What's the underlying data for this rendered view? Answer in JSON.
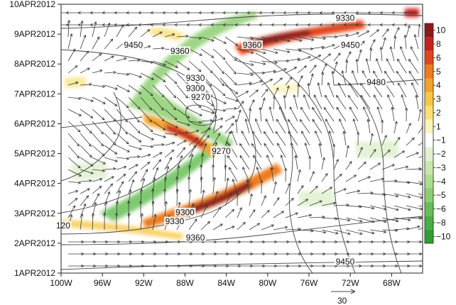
{
  "chart_data": {
    "type": "heatmap",
    "title": "",
    "xlabel": "",
    "ylabel": "",
    "x_ticks": [
      "100W",
      "96W",
      "92W",
      "88W",
      "84W",
      "80W",
      "76W",
      "72W",
      "68W"
    ],
    "x_tick_values": [
      -100,
      -96,
      -92,
      -88,
      -84,
      -80,
      -76,
      -72,
      -68
    ],
    "xlim": [
      -100,
      -65
    ],
    "y_ticks": [
      "1APR2012",
      "2APR2012",
      "3APR2012",
      "4APR2012",
      "5APR2012",
      "6APR2012",
      "7APR2012",
      "8APR2012",
      "9APR2012",
      "10APR2012"
    ],
    "y_tick_values": [
      1,
      2,
      3,
      4,
      5,
      6,
      7,
      8,
      9,
      10
    ],
    "ylim": [
      1,
      10
    ],
    "colorbar": {
      "labels": [
        "10",
        "8",
        "6",
        "5",
        "4",
        "3",
        "2",
        "1",
        "−1",
        "−2",
        "−3",
        "−4",
        "−5",
        "−6",
        "−8",
        "−10"
      ],
      "colors": [
        "#8b1a1a",
        "#c8201e",
        "#e0461a",
        "#ee7a1e",
        "#f3a12a",
        "#f7c640",
        "#f9e070",
        "#fbf3b8",
        "#ffffff",
        "#e2f1d2",
        "#c8e6ad",
        "#acdc8d",
        "#8ccf70",
        "#66bf55",
        "#45b043",
        "#2ea033"
      ]
    },
    "contour_labels": [
      {
        "text": "9330",
        "x": -72.5,
        "y": 9.5
      },
      {
        "text": "9450",
        "x": -93.0,
        "y": 8.6
      },
      {
        "text": "9360",
        "x": -88.5,
        "y": 8.4
      },
      {
        "text": "9360",
        "x": -81.5,
        "y": 8.6
      },
      {
        "text": "9450",
        "x": -72.0,
        "y": 8.6
      },
      {
        "text": "9330",
        "x": -87.0,
        "y": 7.5
      },
      {
        "text": "9480",
        "x": -69.5,
        "y": 7.35
      },
      {
        "text": "9300",
        "x": -87.0,
        "y": 7.15
      },
      {
        "text": "9270",
        "x": -86.5,
        "y": 6.85
      },
      {
        "text": "9270",
        "x": -84.5,
        "y": 5.05
      },
      {
        "text": "9300",
        "x": -88.0,
        "y": 3.0
      },
      {
        "text": "9330",
        "x": -89.0,
        "y": 2.7
      },
      {
        "text": "120",
        "x": -99.8,
        "y": 2.55
      },
      {
        "text": "9360",
        "x": -87.0,
        "y": 2.15
      },
      {
        "text": "9450",
        "x": -72.5,
        "y": 1.35
      }
    ],
    "vector_reference": {
      "label": "30",
      "value": 30
    }
  }
}
